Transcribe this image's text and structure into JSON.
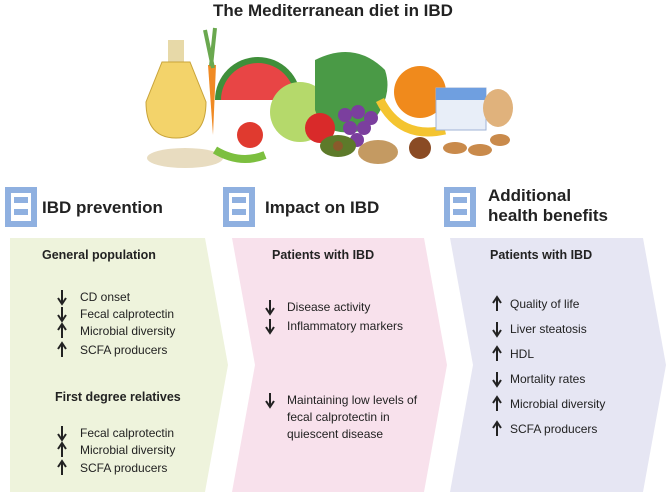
{
  "title": "The Mediterranean diet in IBD",
  "columns": [
    {
      "heading": "IBD prevention",
      "groups": [
        {
          "label": "General population",
          "items": [
            "CD onset",
            "Fecal calprotectin",
            "Microbial diversity",
            "SCFA producers"
          ]
        },
        {
          "label": "First degree relatives",
          "items": [
            "Fecal calprotectin",
            "Microbial diversity",
            "SCFA producers"
          ]
        }
      ]
    },
    {
      "heading": "Impact on IBD",
      "groups": [
        {
          "label": "Patients with IBD",
          "items": [
            "Disease activity",
            "Inflammatory markers",
            "Maintaining low levels of fecal calprotectin in quiescent disease"
          ]
        }
      ]
    },
    {
      "heading": "Additional health benefits",
      "groups": [
        {
          "label": "Patients with IBD",
          "items": [
            "Quality of life",
            "Liver steatosis",
            "HDL",
            "Mortality rates",
            "Microbial diversity",
            "SCFA producers"
          ]
        }
      ]
    }
  ]
}
